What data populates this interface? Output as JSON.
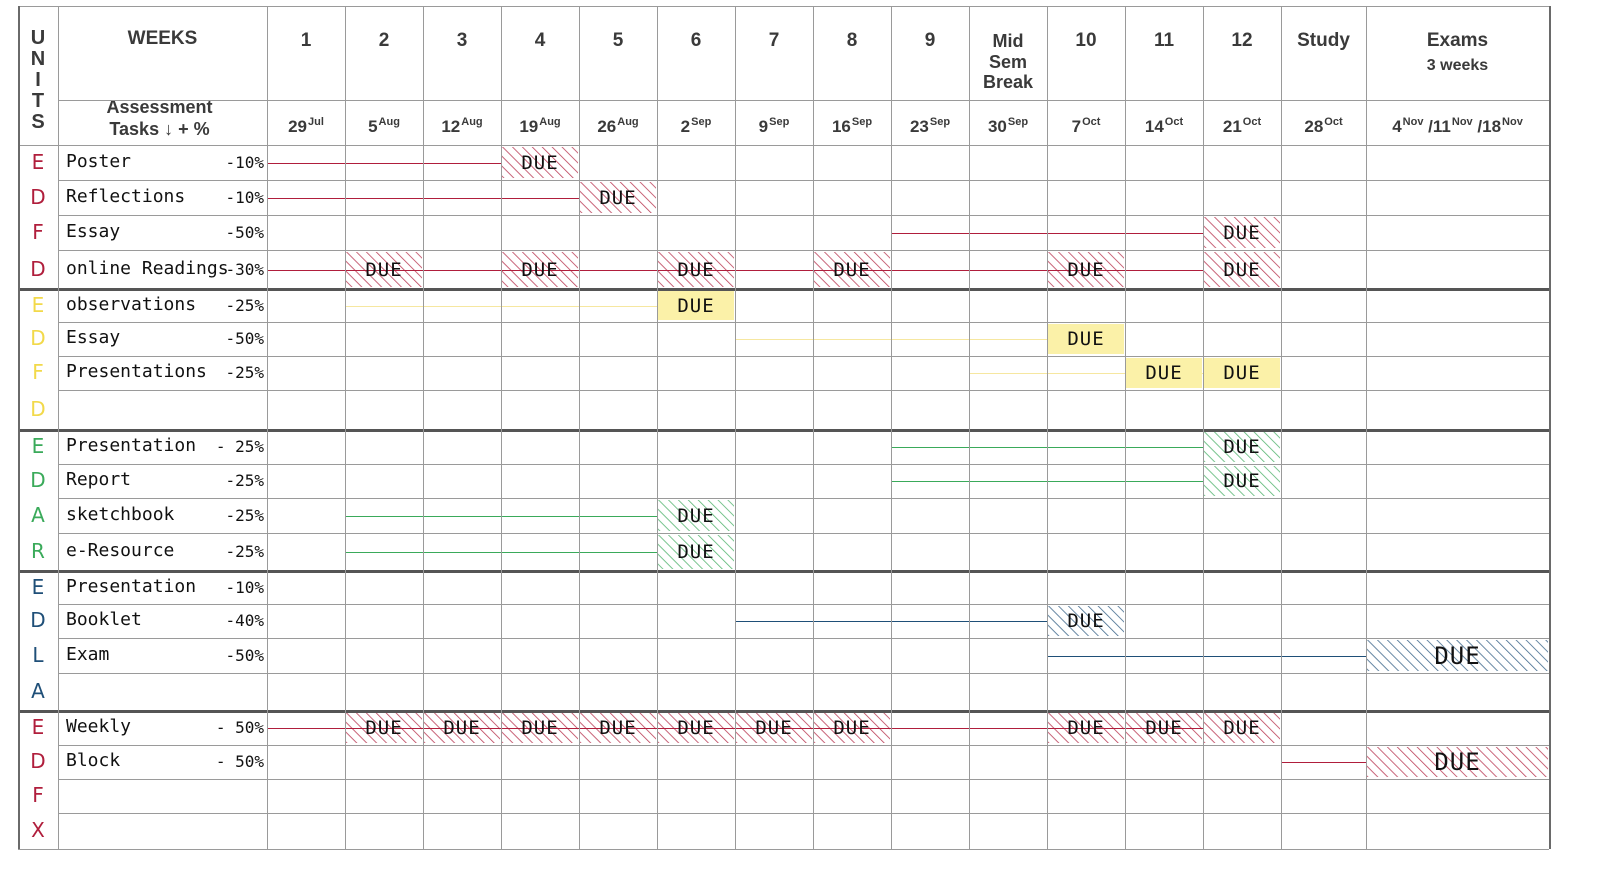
{
  "header": {
    "units_letters": [
      "U",
      "N",
      "I",
      "T",
      "S"
    ],
    "weeks_label": "WEEKS",
    "assessment_label_line1": "Assessment",
    "assessment_label_line2": "Tasks ↓ + %",
    "weeks": [
      {
        "label": "1",
        "day": "29",
        "month": "Jul"
      },
      {
        "label": "2",
        "day": "5",
        "month": "Aug"
      },
      {
        "label": "3",
        "day": "12",
        "month": "Aug"
      },
      {
        "label": "4",
        "day": "19",
        "month": "Aug"
      },
      {
        "label": "5",
        "day": "26",
        "month": "Aug"
      },
      {
        "label": "6",
        "day": "2",
        "month": "Sep"
      },
      {
        "label": "7",
        "day": "9",
        "month": "Sep"
      },
      {
        "label": "8",
        "day": "16",
        "month": "Sep"
      },
      {
        "label": "9",
        "day": "23",
        "month": "Sep"
      },
      {
        "label": "Mid\nSem\nBreak",
        "day": "30",
        "month": "Sep"
      },
      {
        "label": "10",
        "day": "7",
        "month": "Oct"
      },
      {
        "label": "11",
        "day": "14",
        "month": "Oct"
      },
      {
        "label": "12",
        "day": "21",
        "month": "Oct"
      },
      {
        "label": "Study",
        "day": "28",
        "month": "Oct"
      },
      {
        "label": "Exams",
        "sublabel": "3 weeks",
        "date_text": "4Nov /11Nov /18Nov"
      }
    ]
  },
  "due_label": "DUE",
  "colors": {
    "EDFD_red": "#b01e3c",
    "EDFD_yellow": "#f2d94a",
    "EDAR_green": "#3aaa5a",
    "EDLA_blue": "#1f4f78",
    "EDFX_red": "#b01e3c"
  },
  "groups": [
    {
      "unit_letters": [
        "E",
        "D",
        "F",
        "D"
      ],
      "color": "#b01e3c",
      "tasks": [
        {
          "name": "Poster",
          "percent": "-10%",
          "due_weeks": [
            4
          ]
        },
        {
          "name": "Reflections",
          "percent": "-10%",
          "due_weeks": [
            5
          ]
        },
        {
          "name": "Essay",
          "percent": "-50%",
          "due_weeks": [
            13
          ]
        },
        {
          "name": "online Readings",
          "percent": "-30%",
          "due_weeks": [
            2,
            4,
            6,
            8,
            11,
            13
          ]
        }
      ]
    },
    {
      "unit_letters": [
        "E",
        "D",
        "F",
        "D"
      ],
      "color": "#f2d94a",
      "tasks": [
        {
          "name": "observations",
          "percent": "-25%",
          "due_weeks": [
            6
          ]
        },
        {
          "name": "Essay",
          "percent": "-50%",
          "due_weeks": [
            11
          ]
        },
        {
          "name": "Presentations",
          "percent": "-25%",
          "due_weeks": [
            12,
            13
          ]
        },
        {
          "name": "",
          "percent": "",
          "due_weeks": []
        }
      ]
    },
    {
      "unit_letters": [
        "E",
        "D",
        "A",
        "R"
      ],
      "color": "#3aaa5a",
      "tasks": [
        {
          "name": "Presentation",
          "percent": "- 25%",
          "due_weeks": [
            13
          ]
        },
        {
          "name": "Report",
          "percent": "-25%",
          "due_weeks": [
            13
          ]
        },
        {
          "name": "sketchbook",
          "percent": "-25%",
          "due_weeks": [
            6
          ]
        },
        {
          "name": "e-Resource",
          "percent": "-25%",
          "due_weeks": [
            6
          ]
        }
      ]
    },
    {
      "unit_letters": [
        "E",
        "D",
        "L",
        "A"
      ],
      "color": "#1f4f78",
      "tasks": [
        {
          "name": "Presentation",
          "percent": "-10%",
          "due_weeks": []
        },
        {
          "name": "Booklet",
          "percent": "-40%",
          "due_weeks": [
            11
          ]
        },
        {
          "name": "Exam",
          "percent": "-50%",
          "due_weeks": [
            15
          ]
        },
        {
          "name": "",
          "percent": "",
          "due_weeks": []
        }
      ]
    },
    {
      "unit_letters": [
        "E",
        "D",
        "F",
        "X"
      ],
      "color": "#b01e3c",
      "tasks": [
        {
          "name": "Weekly",
          "percent": "- 50%",
          "due_weeks": [
            2,
            3,
            4,
            5,
            6,
            7,
            8,
            11,
            12,
            13
          ]
        },
        {
          "name": "Block",
          "percent": "- 50%",
          "due_weeks": [
            15
          ]
        },
        {
          "name": "",
          "percent": "",
          "due_weeks": []
        },
        {
          "name": "",
          "percent": "",
          "due_weeks": []
        }
      ]
    }
  ]
}
